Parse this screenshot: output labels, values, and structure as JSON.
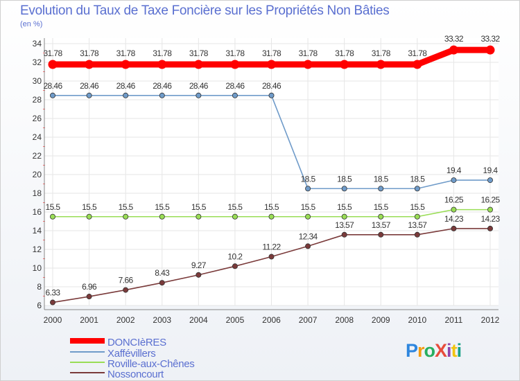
{
  "chart_data": {
    "type": "line",
    "title": "Evolution du Taux de Taxe Foncière sur les Propriétés Non Bâties",
    "ylabel": "(en %)",
    "xlabel": "",
    "ylim": [
      6,
      34
    ],
    "yticks": [
      "6",
      "8",
      "10",
      "12",
      "14",
      "16",
      "18",
      "20",
      "22",
      "24",
      "26",
      "28",
      "30",
      "32",
      "34"
    ],
    "x": [
      "2000",
      "2001",
      "2002",
      "2003",
      "2004",
      "2005",
      "2006",
      "2007",
      "2008",
      "2009",
      "2010",
      "2011",
      "2012"
    ],
    "series": [
      {
        "name": "DONCIèRES",
        "color": "#ff0000",
        "values": [
          31.78,
          31.78,
          31.78,
          31.78,
          31.78,
          31.78,
          31.78,
          31.78,
          31.78,
          31.78,
          31.78,
          33.32,
          33.32
        ],
        "labels": [
          "31.78",
          "31.78",
          "31.78",
          "31.78",
          "31.78",
          "31.78",
          "31.78",
          "31.78",
          "31.78",
          "31.78",
          "31.78",
          "33.32",
          "33.32"
        ]
      },
      {
        "name": "Xaffévillers",
        "color": "#6f9bc9",
        "values": [
          28.46,
          28.46,
          28.46,
          28.46,
          28.46,
          28.46,
          28.46,
          18.5,
          18.5,
          18.5,
          18.5,
          19.4,
          19.4
        ],
        "labels": [
          "28.46",
          "28.46",
          "28.46",
          "28.46",
          "28.46",
          "28.46",
          "28.46",
          "18.5",
          "18.5",
          "18.5",
          "18.5",
          "19.4",
          "19.4"
        ]
      },
      {
        "name": "Roville-aux-Chênes",
        "color": "#99dd55",
        "values": [
          15.5,
          15.5,
          15.5,
          15.5,
          15.5,
          15.5,
          15.5,
          15.5,
          15.5,
          15.5,
          15.5,
          16.25,
          16.25
        ],
        "labels": [
          "15.5",
          "15.5",
          "15.5",
          "15.5",
          "15.5",
          "15.5",
          "15.5",
          "15.5",
          "15.5",
          "15.5",
          "15.5",
          "16.25",
          "16.25"
        ]
      },
      {
        "name": "Nossoncourt",
        "color": "#7a3a3a",
        "values": [
          6.33,
          6.96,
          7.66,
          8.43,
          9.27,
          10.2,
          11.22,
          12.34,
          13.57,
          13.57,
          13.57,
          14.23,
          14.23
        ],
        "labels": [
          "6.33",
          "6.96",
          "7.66",
          "8.43",
          "9.27",
          "10.2",
          "11.22",
          "12.34",
          "13.57",
          "13.57",
          "13.57",
          "14.23",
          "14.23"
        ]
      }
    ]
  },
  "legend": [
    "DONCIèRES",
    "Xaffévillers",
    "Roville-aux-Chênes",
    "Nossoncourt"
  ],
  "logo": {
    "text": "ProXiti",
    "colors": [
      "#2e86de",
      "#f39c12",
      "#27ae60",
      "#e74c3c",
      "#8e44ad",
      "#f1c40f",
      "#16a085"
    ]
  }
}
